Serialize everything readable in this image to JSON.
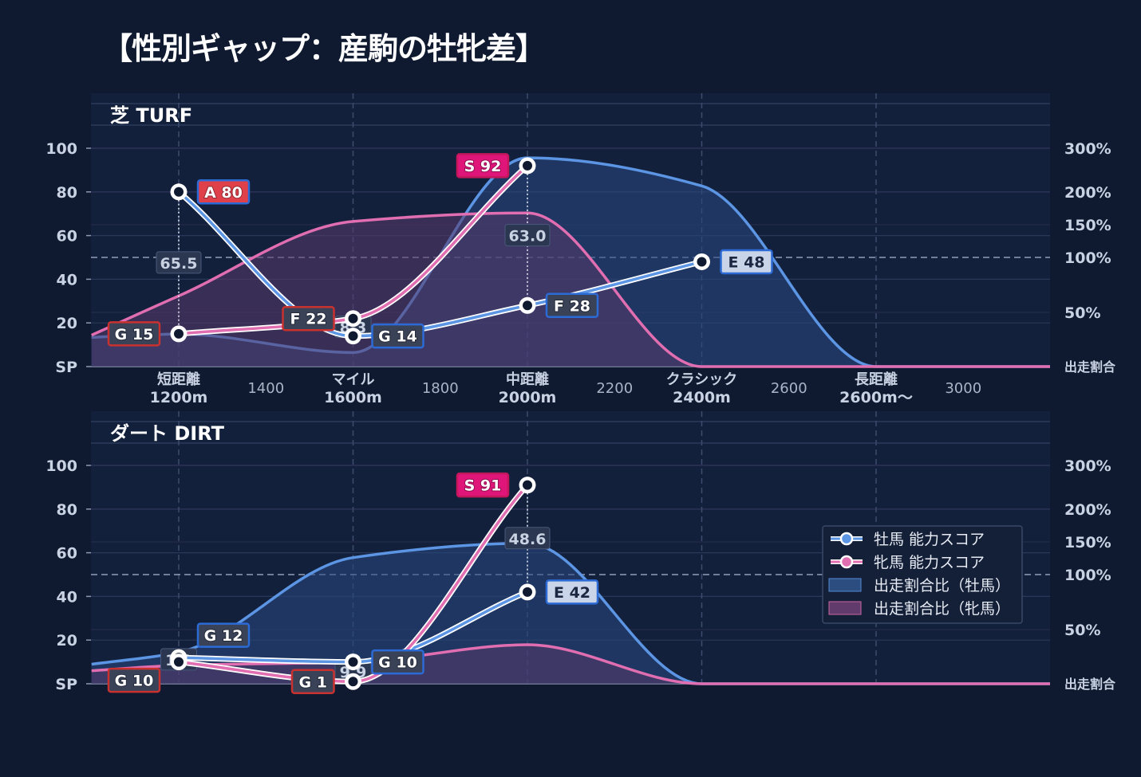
{
  "title": "【性別ギャップ：産駒の牡牝差】",
  "colors": {
    "background": "#0f1a30",
    "panel": "#13203c",
    "male": "#5b95e4",
    "female": "#e06eb0",
    "male_area": "#28497f",
    "female_area": "#5a3a6c",
    "badge_border_S": "#c2185b",
    "badge_fill_S": "#e0157a",
    "badge_border_A": "#2c6bd6",
    "badge_fill_A": "#e0404a",
    "badge_border_E": "#2c6bd6",
    "badge_fill_E": "#c9d4e8",
    "badge_border_F_male": "#2c6bd6",
    "badge_border_F_female": "#c9312f",
    "badge_border_G_male": "#2c6bd6",
    "badge_border_G_female": "#c9312f",
    "badge_fill_dark": "#3a4258"
  },
  "chart_data": {
    "type": "line",
    "y_axis": {
      "ticks": [
        "SP",
        "20",
        "40",
        "60",
        "80",
        "100"
      ],
      "ylim": [
        0,
        100
      ],
      "tick_values": [
        0,
        20,
        40,
        60,
        80,
        100
      ]
    },
    "y2_axis": {
      "ticks": [
        "出走割合",
        "50%",
        "100%",
        "150%",
        "200%",
        "300%"
      ],
      "tick_values": [
        0,
        50,
        100,
        150,
        200,
        300
      ],
      "reference_line": "100%"
    },
    "x_axis": {
      "categories": [
        {
          "line1": "短距離",
          "line2": "1200m",
          "x": 1200
        },
        {
          "line1": "マイル",
          "line2": "1600m",
          "x": 1600
        },
        {
          "line1": "中距離",
          "line2": "2000m",
          "x": 2000
        },
        {
          "line1": "クラシック",
          "line2": "2400m",
          "x": 2400
        },
        {
          "line1": "長距離",
          "line2": "2600m〜",
          "x": 2800
        }
      ],
      "minor": [
        {
          "label": "1400",
          "x": 1400
        },
        {
          "label": "1800",
          "x": 1800
        },
        {
          "label": "2200",
          "x": 2200
        },
        {
          "label": "2600",
          "x": 2600
        },
        {
          "label": "3000",
          "x": 3000
        }
      ]
    },
    "legend": {
      "position": "bottom-right of DIRT panel",
      "items": [
        "牡馬 能力スコア",
        "牝馬 能力スコア",
        "出走割合比（牡馬）",
        "出走割合比（牝馬）"
      ]
    },
    "panels": [
      {
        "name": "芝 TURF",
        "male_score": [
          {
            "x": 1200,
            "y": 80,
            "badge": "A 80"
          },
          {
            "x": 1600,
            "y": 14,
            "badge": "G 14"
          },
          {
            "x": 2000,
            "y": 28,
            "badge": "F 28"
          },
          {
            "x": 2400,
            "y": 48,
            "badge": "E 48"
          }
        ],
        "female_score": [
          {
            "x": 1200,
            "y": 15,
            "badge": "G 15"
          },
          {
            "x": 1600,
            "y": 22,
            "badge": "F 22"
          },
          {
            "x": 2000,
            "y": 92,
            "badge": "S 92"
          }
        ],
        "ratio_labels": [
          {
            "x": 1200,
            "text": "65.5"
          },
          {
            "x": 1600,
            "text": "8.3"
          },
          {
            "x": 2000,
            "text": "63.0"
          }
        ],
        "male_share_pct": [
          {
            "x": 1000,
            "y": 27
          },
          {
            "x": 1200,
            "y": 30
          },
          {
            "x": 1600,
            "y": 13
          },
          {
            "x": 2000,
            "y": 278
          },
          {
            "x": 2400,
            "y": 214
          },
          {
            "x": 2800,
            "y": 0
          },
          {
            "x": 3200,
            "y": 0
          }
        ],
        "female_share_pct": [
          {
            "x": 1000,
            "y": 29
          },
          {
            "x": 1200,
            "y": 65
          },
          {
            "x": 1600,
            "y": 155
          },
          {
            "x": 2000,
            "y": 168
          },
          {
            "x": 2400,
            "y": 0
          },
          {
            "x": 2800,
            "y": 0
          },
          {
            "x": 3200,
            "y": 0
          }
        ]
      },
      {
        "name": "ダート DIRT",
        "male_score": [
          {
            "x": 1200,
            "y": 12,
            "badge": "G 12"
          },
          {
            "x": 1600,
            "y": 10,
            "badge": "G 10"
          },
          {
            "x": 2000,
            "y": 42,
            "badge": "E 42"
          }
        ],
        "female_score": [
          {
            "x": 1200,
            "y": 10,
            "badge": "G 10"
          },
          {
            "x": 1600,
            "y": 1,
            "badge": "G 1"
          },
          {
            "x": 2000,
            "y": 91,
            "badge": "S 91"
          }
        ],
        "ratio_labels": [
          {
            "x": 1200,
            "text": "1.2"
          },
          {
            "x": 1600,
            "text": "9.9"
          },
          {
            "x": 2000,
            "text": "48.6"
          }
        ],
        "male_share_pct": [
          {
            "x": 1000,
            "y": 18
          },
          {
            "x": 1200,
            "y": 29
          },
          {
            "x": 1600,
            "y": 126
          },
          {
            "x": 2000,
            "y": 148
          },
          {
            "x": 2400,
            "y": 0
          },
          {
            "x": 2800,
            "y": 0
          },
          {
            "x": 3200,
            "y": 0
          }
        ],
        "female_share_pct": [
          {
            "x": 1000,
            "y": 12
          },
          {
            "x": 1200,
            "y": 17
          },
          {
            "x": 1600,
            "y": 20
          },
          {
            "x": 2000,
            "y": 36
          },
          {
            "x": 2400,
            "y": 0
          },
          {
            "x": 2800,
            "y": 0
          },
          {
            "x": 3200,
            "y": 0
          }
        ]
      }
    ]
  }
}
